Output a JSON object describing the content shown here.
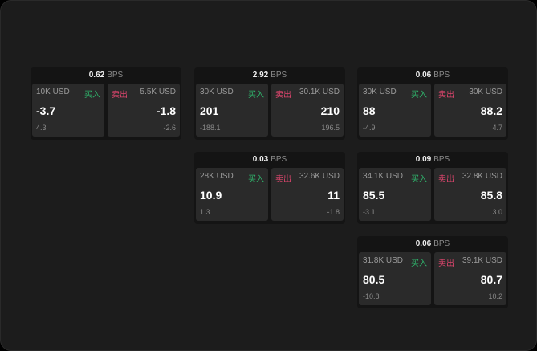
{
  "unit": "BPS",
  "buy_label": "买入",
  "sell_label": "卖出",
  "colors": {
    "buy": "#2fb36b",
    "sell": "#e0466e"
  },
  "widgets": [
    {
      "spread": "0.62",
      "buy": {
        "size": "10K USD",
        "price": "-3.7",
        "change": "4.3"
      },
      "sell": {
        "size": "5.5K USD",
        "price": "-1.8",
        "change": "-2.6"
      }
    },
    {
      "spread": "2.92",
      "buy": {
        "size": "30K USD",
        "price": "201",
        "change": "-188.1"
      },
      "sell": {
        "size": "30.1K USD",
        "price": "210",
        "change": "196.5"
      }
    },
    {
      "spread": "0.06",
      "buy": {
        "size": "30K USD",
        "price": "88",
        "change": "-4.9"
      },
      "sell": {
        "size": "30K USD",
        "price": "88.2",
        "change": "4.7"
      }
    },
    {
      "spread": "0.03",
      "buy": {
        "size": "28K USD",
        "price": "10.9",
        "change": "1.3"
      },
      "sell": {
        "size": "32.6K USD",
        "price": "11",
        "change": "-1.8"
      }
    },
    {
      "spread": "0.09",
      "buy": {
        "size": "34.1K USD",
        "price": "85.5",
        "change": "-3.1"
      },
      "sell": {
        "size": "32.8K USD",
        "price": "85.8",
        "change": "3.0"
      }
    },
    {
      "spread": "0.06",
      "buy": {
        "size": "31.8K USD",
        "price": "80.5",
        "change": "-10.8"
      },
      "sell": {
        "size": "39.1K USD",
        "price": "80.7",
        "change": "10.2"
      }
    }
  ]
}
